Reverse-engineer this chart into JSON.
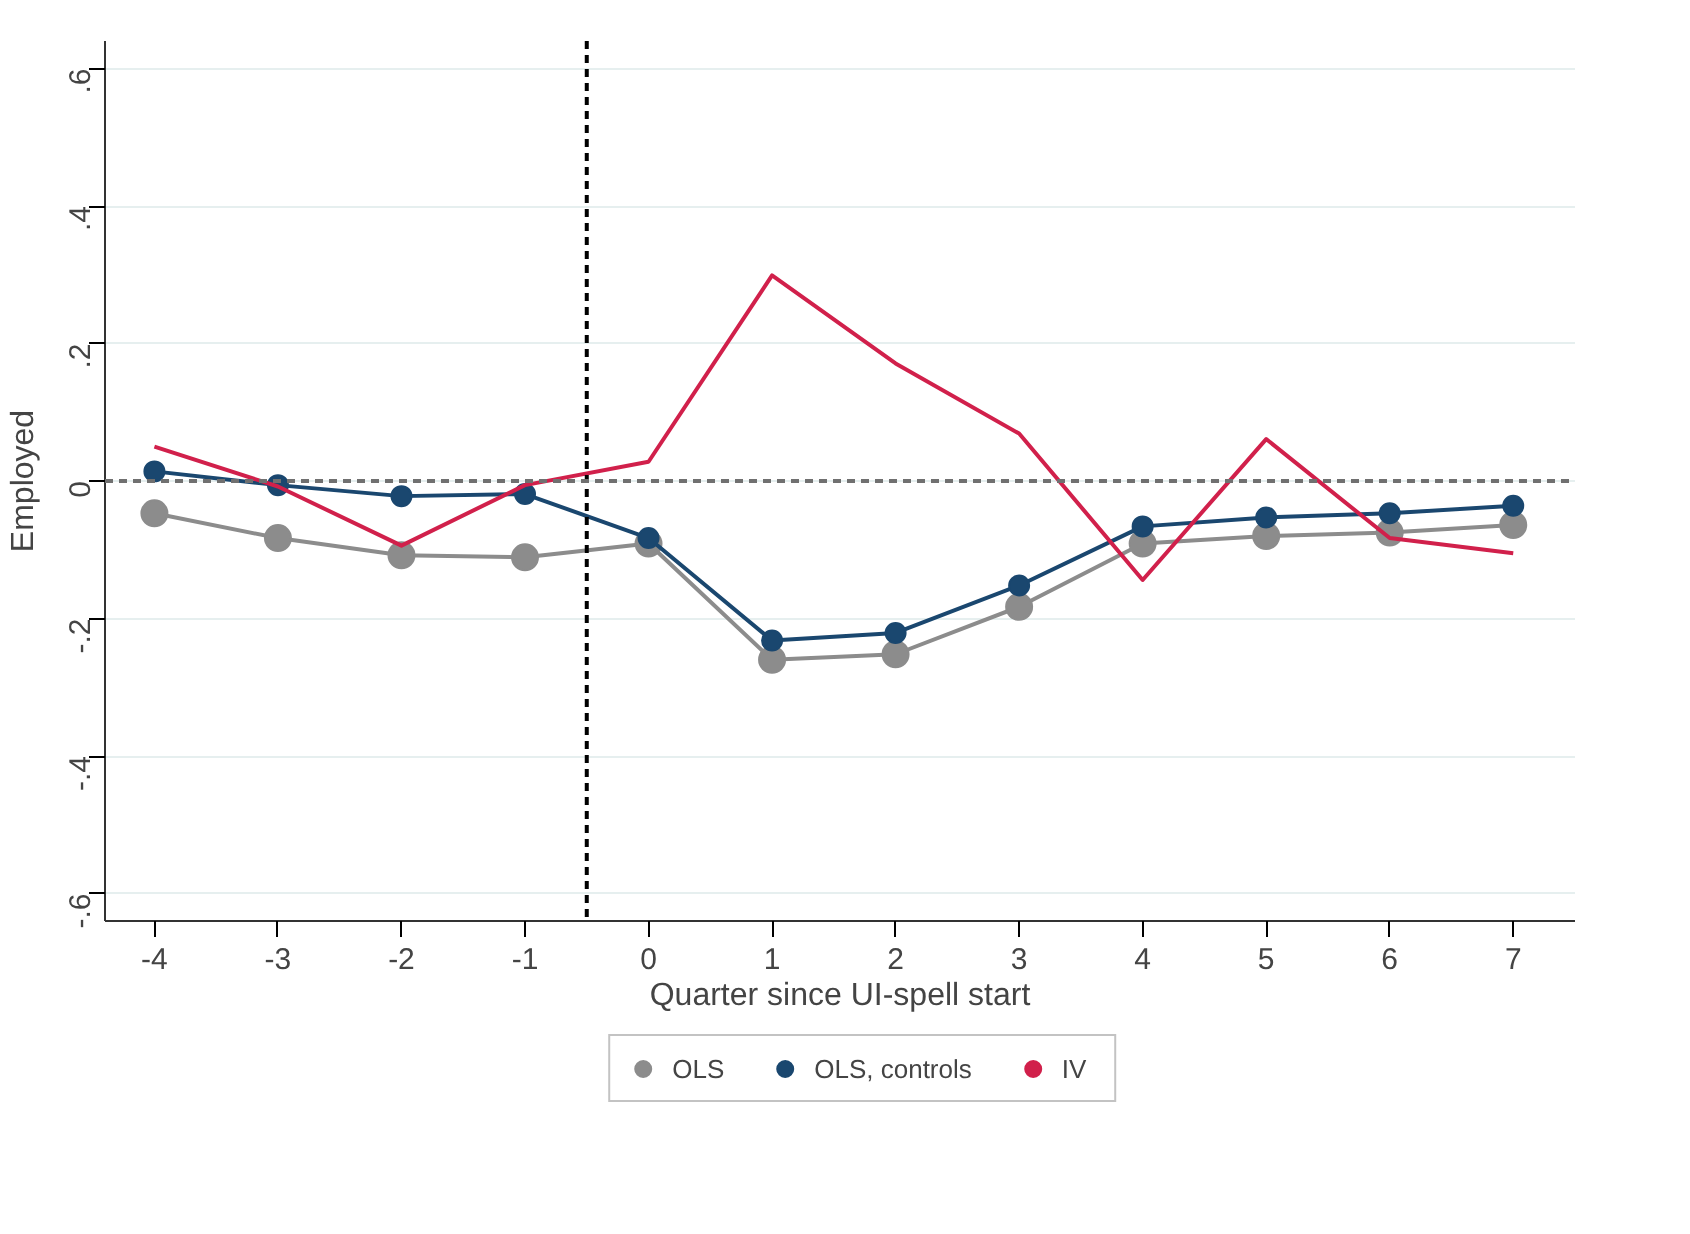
{
  "chart_data": {
    "type": "line",
    "xlabel": "Quarter since UI-spell start",
    "ylabel": "Employed",
    "x": [
      -4,
      -3,
      -2,
      -1,
      0,
      1,
      2,
      3,
      4,
      5,
      6,
      7
    ],
    "series": [
      {
        "name": "OLS",
        "color": "#8c8c8c",
        "marker": "circle",
        "values": [
          -0.047,
          -0.083,
          -0.108,
          -0.111,
          -0.091,
          -0.26,
          -0.252,
          -0.183,
          -0.091,
          -0.08,
          -0.075,
          -0.064
        ]
      },
      {
        "name": "OLS, controls",
        "color": "#1a476f",
        "marker": "circle",
        "values": [
          0.014,
          -0.006,
          -0.022,
          -0.019,
          -0.083,
          -0.232,
          -0.221,
          -0.152,
          -0.066,
          -0.053,
          -0.047,
          -0.036
        ]
      },
      {
        "name": "IV",
        "color": "#d1204b",
        "marker": "none",
        "values": [
          0.05,
          -0.008,
          -0.094,
          -0.006,
          0.028,
          0.299,
          0.171,
          0.069,
          -0.144,
          0.061,
          -0.083,
          -0.105
        ]
      }
    ],
    "xlim": [
      -4.4,
      7.5
    ],
    "ylim": [
      -0.64,
      0.64
    ],
    "xticks": [
      -4,
      -3,
      -2,
      -1,
      0,
      1,
      2,
      3,
      4,
      5,
      6,
      7
    ],
    "yticks": [
      {
        "value": -0.6,
        "label": "-.6"
      },
      {
        "value": -0.4,
        "label": "-.4"
      },
      {
        "value": -0.2,
        "label": "-.2"
      },
      {
        "value": 0,
        "label": "0"
      },
      {
        "value": 0.2,
        "label": ".2"
      },
      {
        "value": 0.4,
        "label": ".4"
      },
      {
        "value": 0.6,
        "label": ".6"
      }
    ],
    "ref_lines": [
      {
        "axis": "x",
        "value": -0.5,
        "color": "#000000",
        "line_style": "dashed"
      },
      {
        "axis": "y",
        "value": 0,
        "color": "#707070",
        "line_style": "dashed"
      }
    ],
    "grid": "y",
    "legend": "bottom"
  }
}
